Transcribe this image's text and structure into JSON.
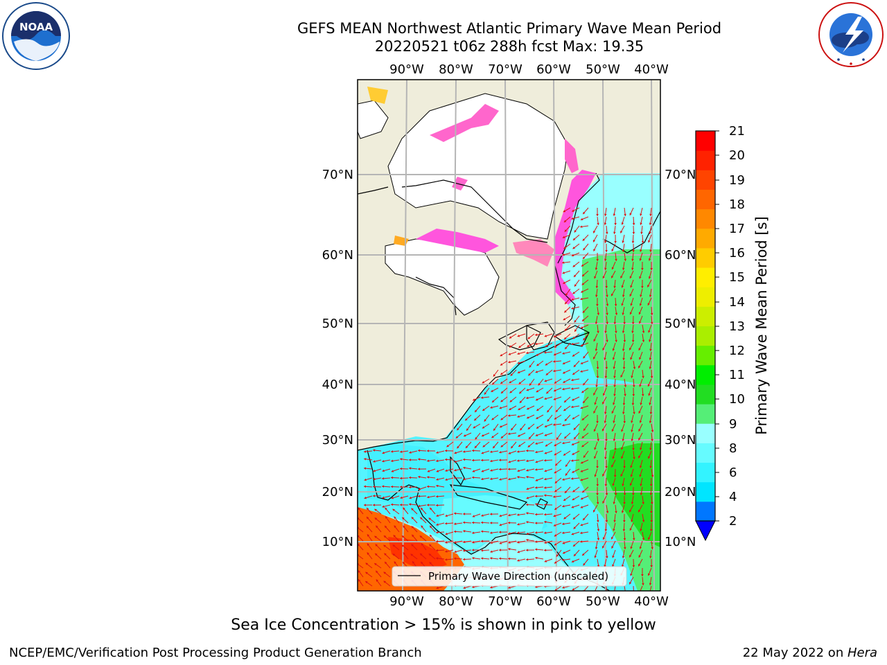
{
  "header": {
    "title_line1": "GEFS MEAN Northwest Atlantic Primary Wave Mean Period",
    "title_line2": "20220521 t06z 288h fcst   Max: 19.35"
  },
  "logos": {
    "left": {
      "text": "NOAA",
      "ring_text": "NATIONAL OCEANIC AND ATMOSPHERIC ADMINISTRATION · U.S. DEPARTMENT OF COMMERCE"
    },
    "right": {
      "ring_text": "NATIONAL WEATHER SERVICE"
    }
  },
  "map": {
    "lon_labels": [
      "90°W",
      "80°W",
      "70°W",
      "60°W",
      "50°W",
      "40°W"
    ],
    "lat_labels": [
      "70°N",
      "60°N",
      "50°N",
      "40°N",
      "30°N",
      "20°N",
      "10°N"
    ],
    "legend_label": "Primary Wave Direction (unscaled)"
  },
  "colorbar": {
    "label": "Primary Wave Mean Period [s]",
    "ticks": [
      "2",
      "4",
      "6",
      "8",
      "9",
      "10",
      "11",
      "12",
      "13",
      "14",
      "15",
      "16",
      "17",
      "18",
      "19",
      "20",
      "21"
    ],
    "colors": [
      "#0077ff",
      "#00e5ff",
      "#33f3ff",
      "#66fbff",
      "#99ffff",
      "#55ee77",
      "#22dd22",
      "#00ee00",
      "#66ee00",
      "#aaee00",
      "#ccee00",
      "#eeee00",
      "#ffee00",
      "#ffcc00",
      "#ffaa00",
      "#ff8800",
      "#ff6600",
      "#ff4400",
      "#ff2200",
      "#ff0000"
    ],
    "under_color": "#0000ff"
  },
  "caption": "Sea Ice Concentration > 15% is shown in pink to yellow",
  "footer": {
    "left": "NCEP/EMC/Verification Post Processing Product Generation Branch",
    "right_prefix": "22 May 2022 on ",
    "right_host": "Hera"
  }
}
